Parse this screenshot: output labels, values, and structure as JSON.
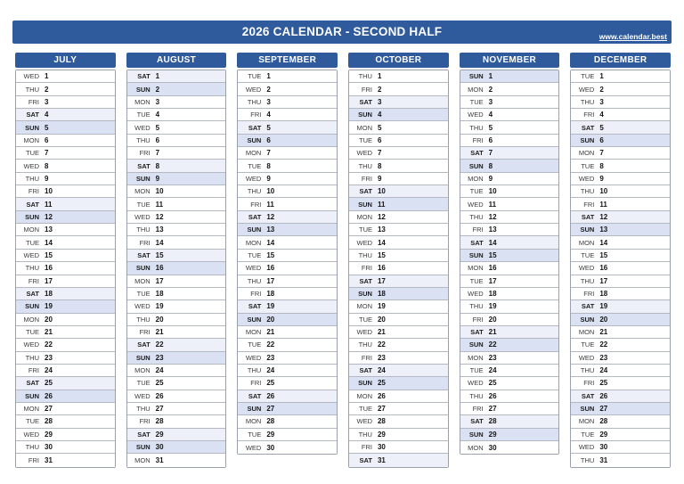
{
  "header": {
    "title": "2026 CALENDAR - SECOND HALF",
    "website": "www.calendar.best"
  },
  "colors": {
    "primary_blue": "#2f5b9c",
    "saturday_row_bg": "#edf0f9",
    "sunday_row_bg": "#d9e1f2",
    "row_border": "#b3b8c2",
    "table_border": "#9aa1ad"
  },
  "calendar": {
    "months": [
      {
        "name": "JULY",
        "days": [
          [
            "WED",
            1
          ],
          [
            "THU",
            2
          ],
          [
            "FRI",
            3
          ],
          [
            "SAT",
            4
          ],
          [
            "SUN",
            5
          ],
          [
            "MON",
            6
          ],
          [
            "TUE",
            7
          ],
          [
            "WED",
            8
          ],
          [
            "THU",
            9
          ],
          [
            "FRI",
            10
          ],
          [
            "SAT",
            11
          ],
          [
            "SUN",
            12
          ],
          [
            "MON",
            13
          ],
          [
            "TUE",
            14
          ],
          [
            "WED",
            15
          ],
          [
            "THU",
            16
          ],
          [
            "FRI",
            17
          ],
          [
            "SAT",
            18
          ],
          [
            "SUN",
            19
          ],
          [
            "MON",
            20
          ],
          [
            "TUE",
            21
          ],
          [
            "WED",
            22
          ],
          [
            "THU",
            23
          ],
          [
            "FRI",
            24
          ],
          [
            "SAT",
            25
          ],
          [
            "SUN",
            26
          ],
          [
            "MON",
            27
          ],
          [
            "TUE",
            28
          ],
          [
            "WED",
            29
          ],
          [
            "THU",
            30
          ],
          [
            "FRI",
            31
          ]
        ]
      },
      {
        "name": "AUGUST",
        "days": [
          [
            "SAT",
            1
          ],
          [
            "SUN",
            2
          ],
          [
            "MON",
            3
          ],
          [
            "TUE",
            4
          ],
          [
            "WED",
            5
          ],
          [
            "THU",
            6
          ],
          [
            "FRI",
            7
          ],
          [
            "SAT",
            8
          ],
          [
            "SUN",
            9
          ],
          [
            "MON",
            10
          ],
          [
            "TUE",
            11
          ],
          [
            "WED",
            12
          ],
          [
            "THU",
            13
          ],
          [
            "FRI",
            14
          ],
          [
            "SAT",
            15
          ],
          [
            "SUN",
            16
          ],
          [
            "MON",
            17
          ],
          [
            "TUE",
            18
          ],
          [
            "WED",
            19
          ],
          [
            "THU",
            20
          ],
          [
            "FRI",
            21
          ],
          [
            "SAT",
            22
          ],
          [
            "SUN",
            23
          ],
          [
            "MON",
            24
          ],
          [
            "TUE",
            25
          ],
          [
            "WED",
            26
          ],
          [
            "THU",
            27
          ],
          [
            "FRI",
            28
          ],
          [
            "SAT",
            29
          ],
          [
            "SUN",
            30
          ],
          [
            "MON",
            31
          ]
        ]
      },
      {
        "name": "SEPTEMBER",
        "days": [
          [
            "TUE",
            1
          ],
          [
            "WED",
            2
          ],
          [
            "THU",
            3
          ],
          [
            "FRI",
            4
          ],
          [
            "SAT",
            5
          ],
          [
            "SUN",
            6
          ],
          [
            "MON",
            7
          ],
          [
            "TUE",
            8
          ],
          [
            "WED",
            9
          ],
          [
            "THU",
            10
          ],
          [
            "FRI",
            11
          ],
          [
            "SAT",
            12
          ],
          [
            "SUN",
            13
          ],
          [
            "MON",
            14
          ],
          [
            "TUE",
            15
          ],
          [
            "WED",
            16
          ],
          [
            "THU",
            17
          ],
          [
            "FRI",
            18
          ],
          [
            "SAT",
            19
          ],
          [
            "SUN",
            20
          ],
          [
            "MON",
            21
          ],
          [
            "TUE",
            22
          ],
          [
            "WED",
            23
          ],
          [
            "THU",
            24
          ],
          [
            "FRI",
            25
          ],
          [
            "SAT",
            26
          ],
          [
            "SUN",
            27
          ],
          [
            "MON",
            28
          ],
          [
            "TUE",
            29
          ],
          [
            "WED",
            30
          ]
        ]
      },
      {
        "name": "OCTOBER",
        "days": [
          [
            "THU",
            1
          ],
          [
            "FRI",
            2
          ],
          [
            "SAT",
            3
          ],
          [
            "SUN",
            4
          ],
          [
            "MON",
            5
          ],
          [
            "TUE",
            6
          ],
          [
            "WED",
            7
          ],
          [
            "THU",
            8
          ],
          [
            "FRI",
            9
          ],
          [
            "SAT",
            10
          ],
          [
            "SUN",
            11
          ],
          [
            "MON",
            12
          ],
          [
            "TUE",
            13
          ],
          [
            "WED",
            14
          ],
          [
            "THU",
            15
          ],
          [
            "FRI",
            16
          ],
          [
            "SAT",
            17
          ],
          [
            "SUN",
            18
          ],
          [
            "MON",
            19
          ],
          [
            "TUE",
            20
          ],
          [
            "WED",
            21
          ],
          [
            "THU",
            22
          ],
          [
            "FRI",
            23
          ],
          [
            "SAT",
            24
          ],
          [
            "SUN",
            25
          ],
          [
            "MON",
            26
          ],
          [
            "TUE",
            27
          ],
          [
            "WED",
            28
          ],
          [
            "THU",
            29
          ],
          [
            "FRI",
            30
          ],
          [
            "SAT",
            31
          ]
        ]
      },
      {
        "name": "NOVEMBER",
        "days": [
          [
            "SUN",
            1
          ],
          [
            "MON",
            2
          ],
          [
            "TUE",
            3
          ],
          [
            "WED",
            4
          ],
          [
            "THU",
            5
          ],
          [
            "FRI",
            6
          ],
          [
            "SAT",
            7
          ],
          [
            "SUN",
            8
          ],
          [
            "MON",
            9
          ],
          [
            "TUE",
            10
          ],
          [
            "WED",
            11
          ],
          [
            "THU",
            12
          ],
          [
            "FRI",
            13
          ],
          [
            "SAT",
            14
          ],
          [
            "SUN",
            15
          ],
          [
            "MON",
            16
          ],
          [
            "TUE",
            17
          ],
          [
            "WED",
            18
          ],
          [
            "THU",
            19
          ],
          [
            "FRI",
            20
          ],
          [
            "SAT",
            21
          ],
          [
            "SUN",
            22
          ],
          [
            "MON",
            23
          ],
          [
            "TUE",
            24
          ],
          [
            "WED",
            25
          ],
          [
            "THU",
            26
          ],
          [
            "FRI",
            27
          ],
          [
            "SAT",
            28
          ],
          [
            "SUN",
            29
          ],
          [
            "MON",
            30
          ]
        ]
      },
      {
        "name": "DECEMBER",
        "days": [
          [
            "TUE",
            1
          ],
          [
            "WED",
            2
          ],
          [
            "THU",
            3
          ],
          [
            "FRI",
            4
          ],
          [
            "SAT",
            5
          ],
          [
            "SUN",
            6
          ],
          [
            "MON",
            7
          ],
          [
            "TUE",
            8
          ],
          [
            "WED",
            9
          ],
          [
            "THU",
            10
          ],
          [
            "FRI",
            11
          ],
          [
            "SAT",
            12
          ],
          [
            "SUN",
            13
          ],
          [
            "MON",
            14
          ],
          [
            "TUE",
            15
          ],
          [
            "WED",
            16
          ],
          [
            "THU",
            17
          ],
          [
            "FRI",
            18
          ],
          [
            "SAT",
            19
          ],
          [
            "SUN",
            20
          ],
          [
            "MON",
            21
          ],
          [
            "TUE",
            22
          ],
          [
            "WED",
            23
          ],
          [
            "THU",
            24
          ],
          [
            "FRI",
            25
          ],
          [
            "SAT",
            26
          ],
          [
            "SUN",
            27
          ],
          [
            "MON",
            28
          ],
          [
            "TUE",
            29
          ],
          [
            "WED",
            30
          ],
          [
            "THU",
            31
          ]
        ]
      }
    ]
  }
}
